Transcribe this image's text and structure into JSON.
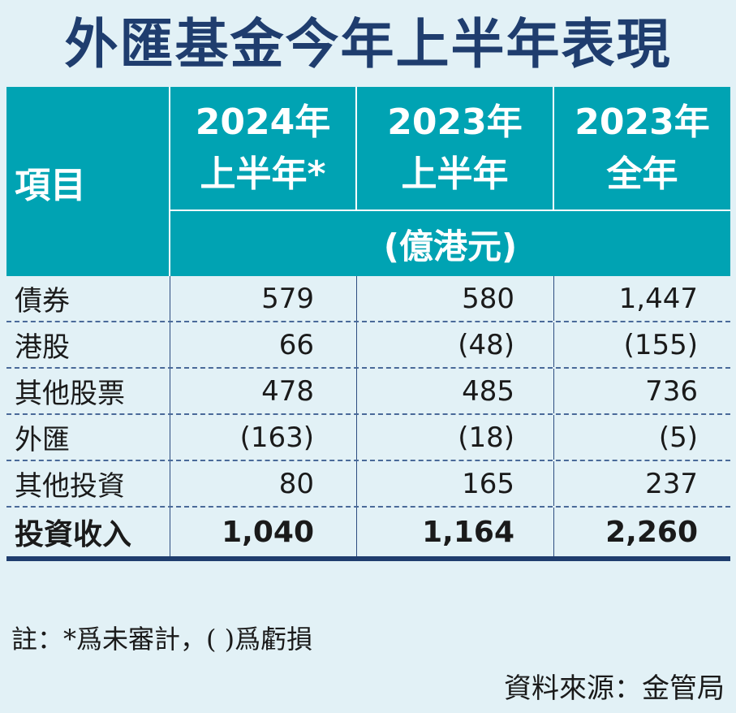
{
  "title": "外匯基金今年上半年表現",
  "header": {
    "item_label": "項目",
    "columns": [
      {
        "line1": "2024年",
        "line2": "上半年*"
      },
      {
        "line1": "2023年",
        "line2": "上半年"
      },
      {
        "line1": "2023年",
        "line2": "全年"
      }
    ],
    "unit": "(億港元)"
  },
  "rows": [
    {
      "item": "債券",
      "values": [
        "579",
        "580",
        "1,447"
      ]
    },
    {
      "item": "港股",
      "values": [
        "66",
        "(48)",
        "(155)"
      ]
    },
    {
      "item": "其他股票",
      "values": [
        "478",
        "485",
        "736"
      ]
    },
    {
      "item": "外匯",
      "values": [
        "(163)",
        "(18)",
        "(5)"
      ]
    },
    {
      "item": "其他投資",
      "values": [
        "80",
        "165",
        "237"
      ]
    },
    {
      "item": "投資收入",
      "values": [
        "1,040",
        "1,164",
        "2,260"
      ]
    }
  ],
  "note": "註：*爲未審計，( )爲虧損",
  "source": "資料來源：金管局",
  "colors": {
    "background": "#e2f1f6",
    "header": "#00a3b3",
    "title": "#1f3d6e",
    "rule": "#1f3d6e"
  }
}
